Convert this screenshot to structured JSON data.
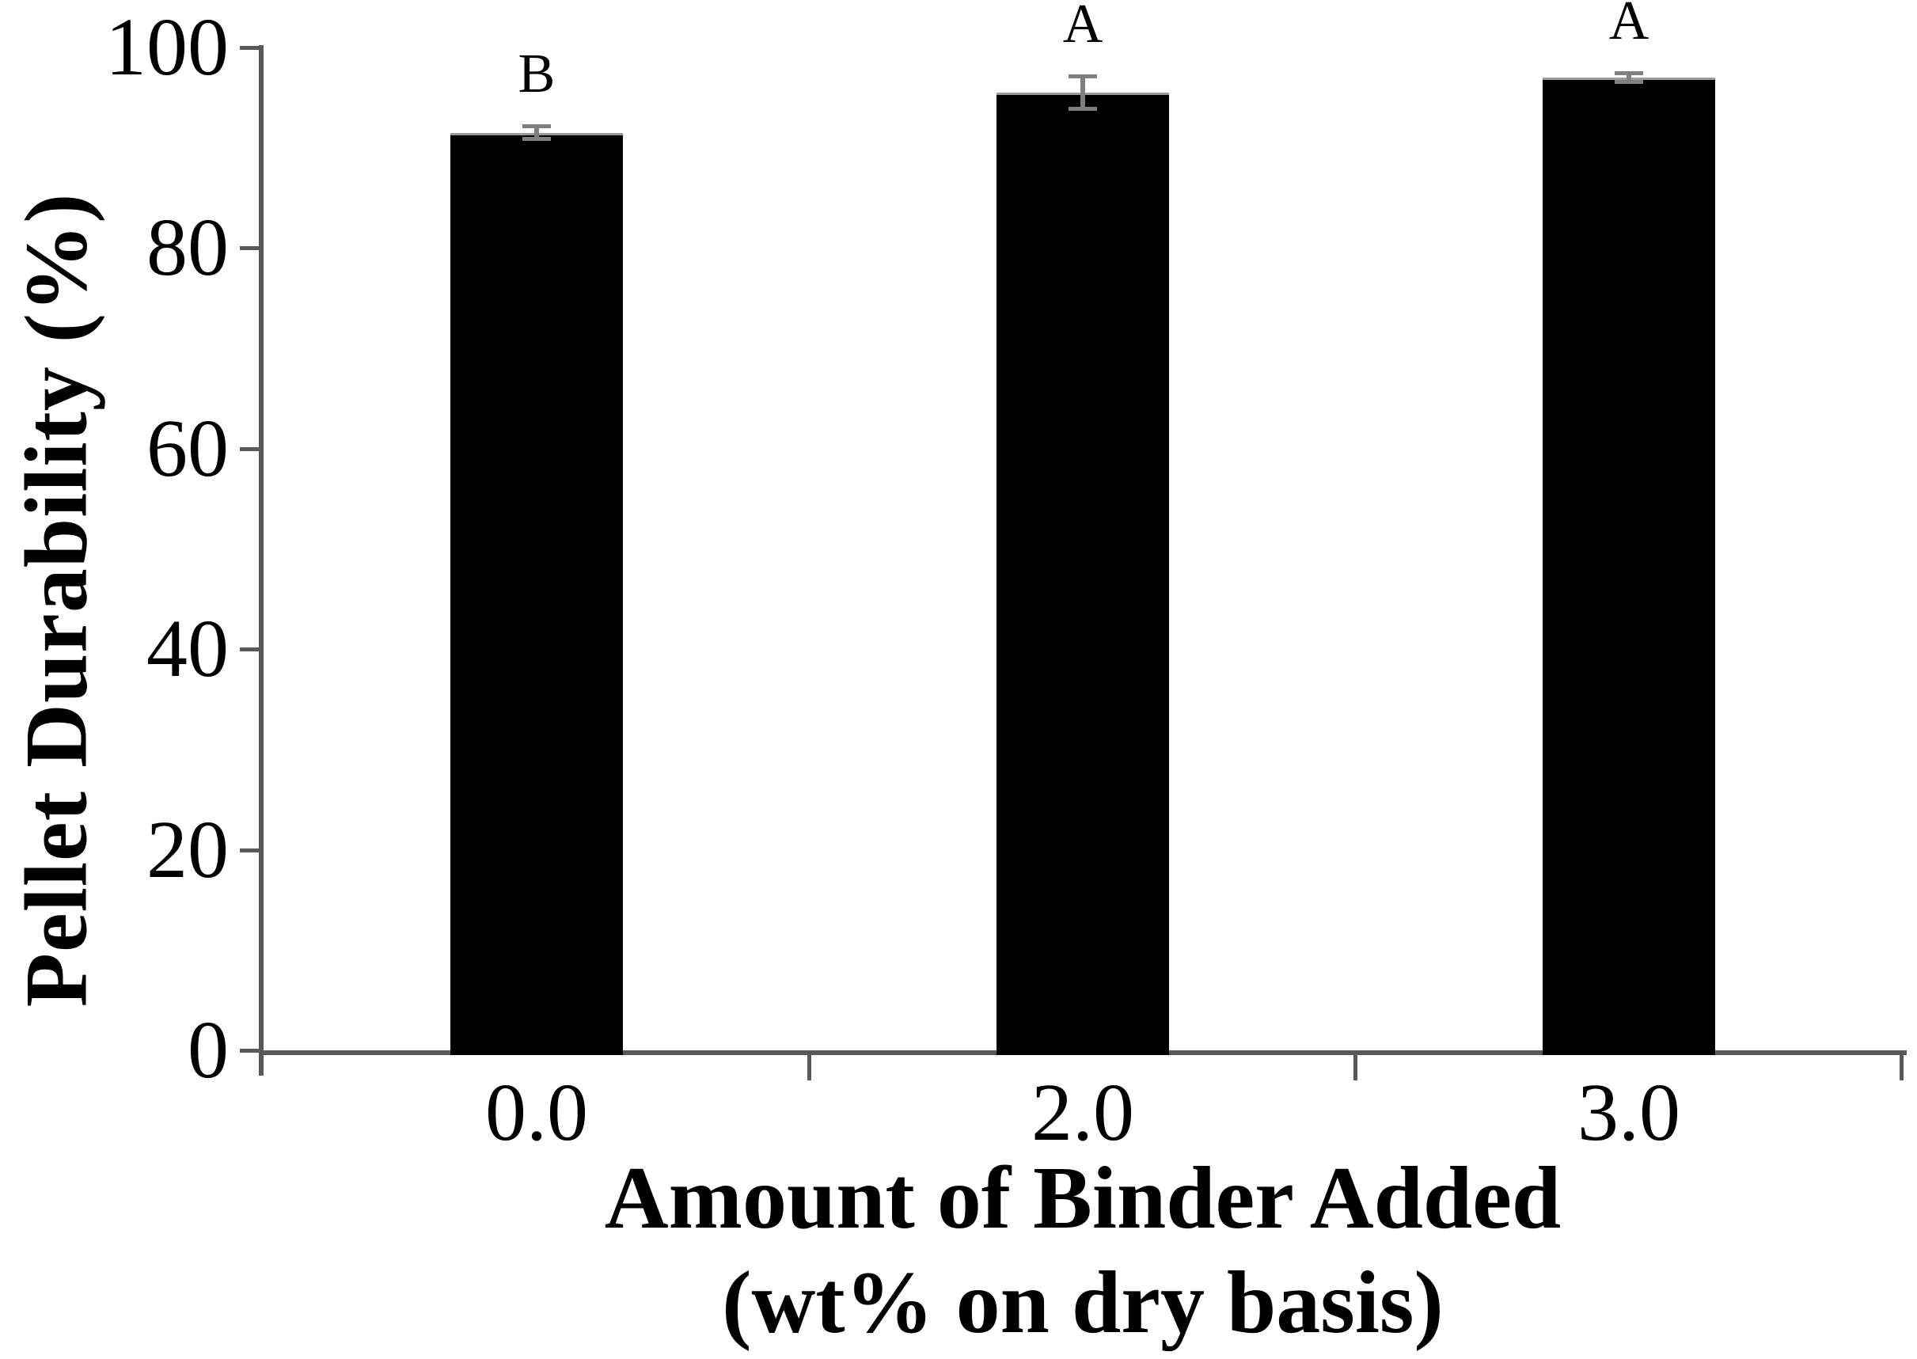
{
  "chart_data": {
    "type": "bar",
    "title": "",
    "categories": [
      "0.0",
      "2.0",
      "3.0"
    ],
    "values": [
      91.5,
      95.5,
      97.0
    ],
    "errors": [
      0.5,
      1.5,
      0.3
    ],
    "bar_labels": [
      "B",
      "A",
      "A"
    ],
    "xlabel": "Amount of Binder Added",
    "xlabel_line2": "(wt% on dry basis)",
    "ylabel": "Pellet Durability (%)",
    "ylim": [
      0,
      100
    ],
    "yticks": [
      0,
      20,
      40,
      60,
      80,
      100
    ],
    "grid": false,
    "legend": false,
    "bar_color": "#000000",
    "bar_top_edge_color": "#9b9b9b",
    "axis_color": "#595959",
    "error_bar_color": "#7f7f7f",
    "text_color": "#000000",
    "background_color": "#ffffff"
  }
}
